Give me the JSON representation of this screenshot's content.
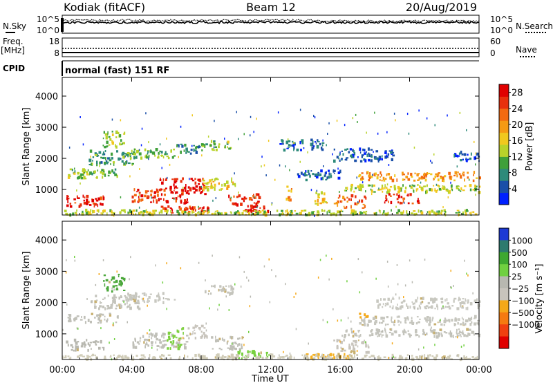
{
  "header": {
    "station": "Kodiak (fitACF)",
    "beam": "Beam 12",
    "date": "20/Aug/2019"
  },
  "top_panels": {
    "nsky_label": "N.Sky",
    "nsky_ticks": [
      "10^5",
      "10^0"
    ],
    "nsearch_label": "N.Search",
    "nsearch_ticks": [
      "10^5",
      "10^0"
    ],
    "freq_label_line1": "Freq.",
    "freq_label_line2": "[MHz]",
    "freq_ticks": [
      "18",
      "8"
    ],
    "nave_label": "Nave",
    "nave_ticks": [
      "60",
      "0"
    ],
    "cpid_label": "CPID",
    "cpid_text": "normal (fast) 151 RF"
  },
  "chart_data": [
    {
      "type": "heatmap",
      "name": "power",
      "ylabel": "Slant Range [km]",
      "y_ticks": [
        "1000",
        "2000",
        "3000",
        "4000"
      ],
      "y_tick_values": [
        1000,
        2000,
        3000,
        4000
      ],
      "ylim": [
        180,
        4600
      ],
      "xlim_hours": [
        0,
        24
      ],
      "colorbar_label": "Power [dB]",
      "colorbar_ticks": [
        "4",
        "8",
        "12",
        "16",
        "20",
        "24",
        "28"
      ],
      "colorbar_tick_values": [
        4,
        8,
        12,
        16,
        20,
        24,
        28
      ],
      "colorbar_range": [
        0,
        30
      ],
      "colors": [
        "#0020ff",
        "#1a4fa8",
        "#2d8a7a",
        "#3fa03a",
        "#b8d22a",
        "#f0c81e",
        "#f59a14",
        "#f26a10",
        "#e8300c",
        "#e00000"
      ],
      "regions": [
        {
          "t0": 0.3,
          "t1": 3.2,
          "r0": 1350,
          "r1": 1650,
          "v": 12
        },
        {
          "t0": 1.5,
          "t1": 4.2,
          "r0": 1800,
          "r1": 2250,
          "v": 9
        },
        {
          "t0": 2.3,
          "t1": 3.6,
          "r0": 2350,
          "r1": 2900,
          "v": 13
        },
        {
          "t0": 3.5,
          "t1": 6.5,
          "r0": 2000,
          "r1": 2300,
          "v": 11
        },
        {
          "t0": 6.5,
          "t1": 8.0,
          "r0": 2150,
          "r1": 2450,
          "v": 8
        },
        {
          "t0": 8.0,
          "t1": 9.8,
          "r0": 2250,
          "r1": 2550,
          "v": 12
        },
        {
          "t0": 0.2,
          "t1": 2.4,
          "r0": 450,
          "r1": 800,
          "v": 27
        },
        {
          "t0": 4.0,
          "t1": 7.2,
          "r0": 550,
          "r1": 1000,
          "v": 26
        },
        {
          "t0": 5.5,
          "t1": 8.2,
          "r0": 850,
          "r1": 1350,
          "v": 28
        },
        {
          "t0": 5.5,
          "t1": 8.5,
          "r0": 250,
          "r1": 450,
          "v": 26
        },
        {
          "t0": 8.0,
          "t1": 10.0,
          "r0": 950,
          "r1": 1350,
          "v": 16
        },
        {
          "t0": 9.5,
          "t1": 11.3,
          "r0": 500,
          "r1": 850,
          "v": 26
        },
        {
          "t0": 10.5,
          "t1": 11.8,
          "r0": 280,
          "r1": 480,
          "v": 28
        },
        {
          "t0": 12.8,
          "t1": 13.2,
          "r0": 650,
          "r1": 1100,
          "v": 18
        },
        {
          "t0": 14.5,
          "t1": 15.4,
          "r0": 500,
          "r1": 900,
          "v": 16
        },
        {
          "t0": 15.6,
          "t1": 17.6,
          "r0": 400,
          "r1": 800,
          "v": 23
        },
        {
          "t0": 17.0,
          "t1": 24.0,
          "r0": 1280,
          "r1": 1550,
          "v": 20
        },
        {
          "t0": 16.2,
          "t1": 24.0,
          "r0": 900,
          "r1": 1150,
          "v": 14
        },
        {
          "t0": 18.5,
          "t1": 20.5,
          "r0": 550,
          "r1": 850,
          "v": 26
        },
        {
          "t0": 0.0,
          "t1": 24.0,
          "r0": 180,
          "r1": 330,
          "v": 14
        },
        {
          "t0": 13.5,
          "t1": 16.0,
          "r0": 1300,
          "r1": 1600,
          "v": 5
        },
        {
          "t0": 12.5,
          "t1": 15.0,
          "r0": 2250,
          "r1": 2600,
          "v": 5
        },
        {
          "t0": 15.5,
          "t1": 19.0,
          "r0": 1900,
          "r1": 2300,
          "v": 5
        },
        {
          "t0": 22.5,
          "t1": 24.0,
          "r0": 1900,
          "r1": 2200,
          "v": 4
        }
      ]
    },
    {
      "type": "heatmap",
      "name": "velocity",
      "ylabel": "Slant Range [km]",
      "y_ticks": [
        "1000",
        "2000",
        "3000",
        "4000"
      ],
      "y_tick_values": [
        1000,
        2000,
        3000,
        4000
      ],
      "ylim": [
        180,
        4600
      ],
      "xlim_hours": [
        0,
        24
      ],
      "xlabel": "Time UT",
      "x_ticks": [
        "00:00",
        "04:00",
        "08:00",
        "12:00",
        "16:00",
        "20:00",
        "00:00"
      ],
      "x_tick_hours": [
        0,
        4,
        8,
        12,
        16,
        20,
        24
      ],
      "colorbar_label": "Velocity [m s⁻¹]",
      "colorbar_ticks": [
        "1000",
        "500",
        "100",
        "25",
        "−25",
        "−100",
        "−500",
        "−1000"
      ],
      "colorbar_colors": [
        "#1d3ad4",
        "#2d7a6e",
        "#3ea830",
        "#70d040",
        "#b8b8b0",
        "#c8c4bc",
        "#f5a818",
        "#f57a10",
        "#f04010",
        "#e00000"
      ],
      "regions": [
        {
          "t0": 0.3,
          "t1": 3.2,
          "r0": 1350,
          "r1": 1650,
          "c": "#c0c0b8"
        },
        {
          "t0": 1.5,
          "t1": 4.5,
          "r0": 1800,
          "r1": 2250,
          "c": "#c4c4bc"
        },
        {
          "t0": 2.3,
          "t1": 3.6,
          "r0": 2350,
          "r1": 2900,
          "c": "#4ca83c"
        },
        {
          "t0": 3.5,
          "t1": 6.5,
          "r0": 2000,
          "r1": 2300,
          "c": "#c8c8c0"
        },
        {
          "t0": 8.0,
          "t1": 9.8,
          "r0": 2250,
          "r1": 2550,
          "c": "#c4c4bc"
        },
        {
          "t0": 0.2,
          "t1": 2.4,
          "r0": 450,
          "r1": 800,
          "c": "#b8b8b0"
        },
        {
          "t0": 4.0,
          "t1": 7.2,
          "r0": 550,
          "r1": 1000,
          "c": "#c0c0b8"
        },
        {
          "t0": 6.0,
          "t1": 7.0,
          "r0": 500,
          "r1": 1200,
          "c": "#7ed040"
        },
        {
          "t0": 7.2,
          "t1": 8.3,
          "r0": 850,
          "r1": 1300,
          "c": "#c8c4bc"
        },
        {
          "t0": 8.5,
          "t1": 10.5,
          "r0": 500,
          "r1": 900,
          "c": "#c0c0b8"
        },
        {
          "t0": 10.0,
          "t1": 12.0,
          "r0": 200,
          "r1": 450,
          "c": "#78d040"
        },
        {
          "t0": 14.0,
          "t1": 16.5,
          "r0": 200,
          "r1": 350,
          "c": "#f5b020"
        },
        {
          "t0": 15.6,
          "t1": 17.6,
          "r0": 400,
          "r1": 800,
          "c": "#c8c4bc"
        },
        {
          "t0": 17.0,
          "t1": 24.0,
          "r0": 1280,
          "r1": 1550,
          "c": "#c6c6be"
        },
        {
          "t0": 16.2,
          "t1": 24.0,
          "r0": 900,
          "r1": 1150,
          "c": "#c4c4bc"
        },
        {
          "t0": 18.0,
          "t1": 24.0,
          "r0": 1800,
          "r1": 2150,
          "c": "#c8c8c0"
        },
        {
          "t0": 0.0,
          "t1": 24.0,
          "r0": 180,
          "r1": 330,
          "c": "#d0ccb8"
        },
        {
          "t0": 17.0,
          "t1": 17.6,
          "r0": 1500,
          "r1": 1650,
          "c": "#f5a818"
        }
      ]
    }
  ]
}
